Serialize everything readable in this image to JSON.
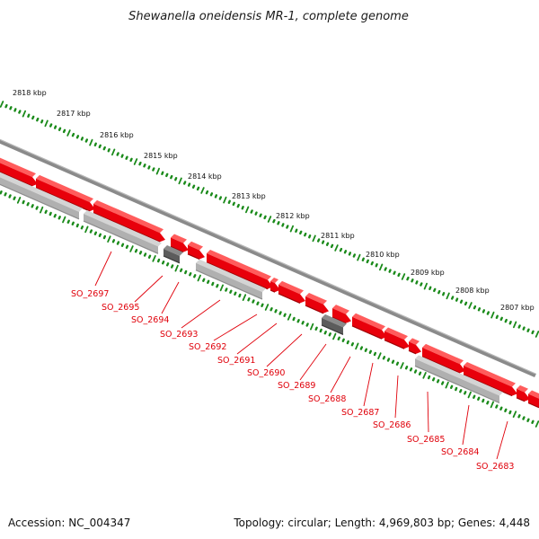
{
  "title": "Shewanella oneidensis MR-1, complete genome",
  "footer": {
    "accession": "Accession: NC_004347",
    "summary": "Topology: circular; Length: 4,969,803 bp; Genes: 4,448"
  },
  "kbp_labels": [
    "2818 kbp",
    "2817 kbp",
    "2816 kbp",
    "2815 kbp",
    "2814 kbp",
    "2813 kbp",
    "2812 kbp",
    "2811 kbp",
    "2810 kbp",
    "2809 kbp",
    "2808 kbp",
    "2807 kbp"
  ],
  "gene_labels": [
    "SO_2697",
    "SO_2695",
    "SO_2694",
    "SO_2693",
    "SO_2692",
    "SO_2691",
    "SO_2690",
    "SO_2689",
    "SO_2688",
    "SO_2687",
    "SO_2686",
    "SO_2685",
    "SO_2684",
    "SO_2683"
  ],
  "colors": {
    "cds": "#e8000b",
    "cds_top": "#ff5c5c",
    "cds_side": "#a00006",
    "gene_feature": "#b0b0b0",
    "gene_feature_dark": "#5c5c5c",
    "backbone": "#8a8a8a",
    "tick": "#1a8a1a",
    "label": "#e0000a"
  }
}
